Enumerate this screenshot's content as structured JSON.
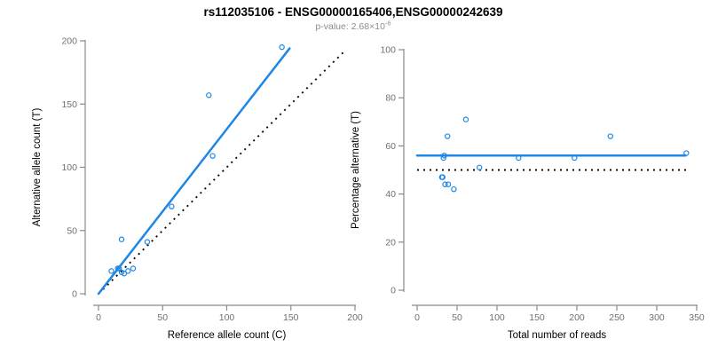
{
  "header": {
    "title": "rs112035106 - ENSG00000165406,ENSG00000242639",
    "p_value_label": "p-value: 2.68×10",
    "p_value_exponent": "-6"
  },
  "theme": {
    "background": "#FFFFFF",
    "accent_color": "#1E87E5",
    "axis_color": "#8A8A8A",
    "tick_label_color": "#707070",
    "axis_title_color": "#000000",
    "reference_color": "#0A0A0A",
    "subtitle_color": "#8C8C8C"
  },
  "chart_data": [
    {
      "type": "scatter",
      "title": "",
      "xlabel": "Reference allele count (C)",
      "ylabel": "Alternative allele count (T)",
      "xlim": [
        0,
        200
      ],
      "ylim": [
        0,
        200
      ],
      "xticks": [
        0,
        50,
        100,
        150,
        200
      ],
      "yticks": [
        0,
        50,
        100,
        150,
        200
      ],
      "grid": false,
      "legend": null,
      "marker": "open-circle",
      "points": [
        [
          10,
          18
        ],
        [
          15,
          20
        ],
        [
          16,
          20
        ],
        [
          18,
          17
        ],
        [
          20,
          16
        ],
        [
          23,
          18
        ],
        [
          27,
          20
        ],
        [
          18,
          43
        ],
        [
          38,
          41
        ],
        [
          57,
          69
        ],
        [
          89,
          109
        ],
        [
          86,
          157
        ],
        [
          143,
          195
        ]
      ],
      "fit_line": {
        "x1": 0,
        "y1": 0,
        "x2": 149,
        "y2": 194,
        "style": "solid"
      },
      "reference_line": {
        "x1": 0,
        "y1": 0,
        "x2": 193,
        "y2": 193,
        "style": "dotted"
      }
    },
    {
      "type": "scatter",
      "title": "",
      "xlabel": "Total number of reads",
      "ylabel": "Percentage alternative (T)",
      "xlim": [
        0,
        350
      ],
      "ylim": [
        0,
        100
      ],
      "xticks": [
        0,
        50,
        100,
        150,
        200,
        250,
        300,
        350
      ],
      "yticks": [
        0,
        20,
        40,
        60,
        80,
        100
      ],
      "grid": false,
      "legend": null,
      "marker": "open-circle",
      "points": [
        [
          31,
          47
        ],
        [
          32,
          47
        ],
        [
          33,
          55
        ],
        [
          34,
          56
        ],
        [
          35,
          44
        ],
        [
          38,
          64
        ],
        [
          39,
          44
        ],
        [
          46,
          42
        ],
        [
          61,
          71
        ],
        [
          78,
          51
        ],
        [
          127,
          55
        ],
        [
          197,
          55
        ],
        [
          242,
          64
        ],
        [
          337,
          57
        ]
      ],
      "fit_line": {
        "x1": 0,
        "y1": 56,
        "x2": 336,
        "y2": 56,
        "style": "solid"
      },
      "reference_line": {
        "x1": 0,
        "y1": 50,
        "x2": 337,
        "y2": 50,
        "style": "dotted"
      }
    }
  ]
}
